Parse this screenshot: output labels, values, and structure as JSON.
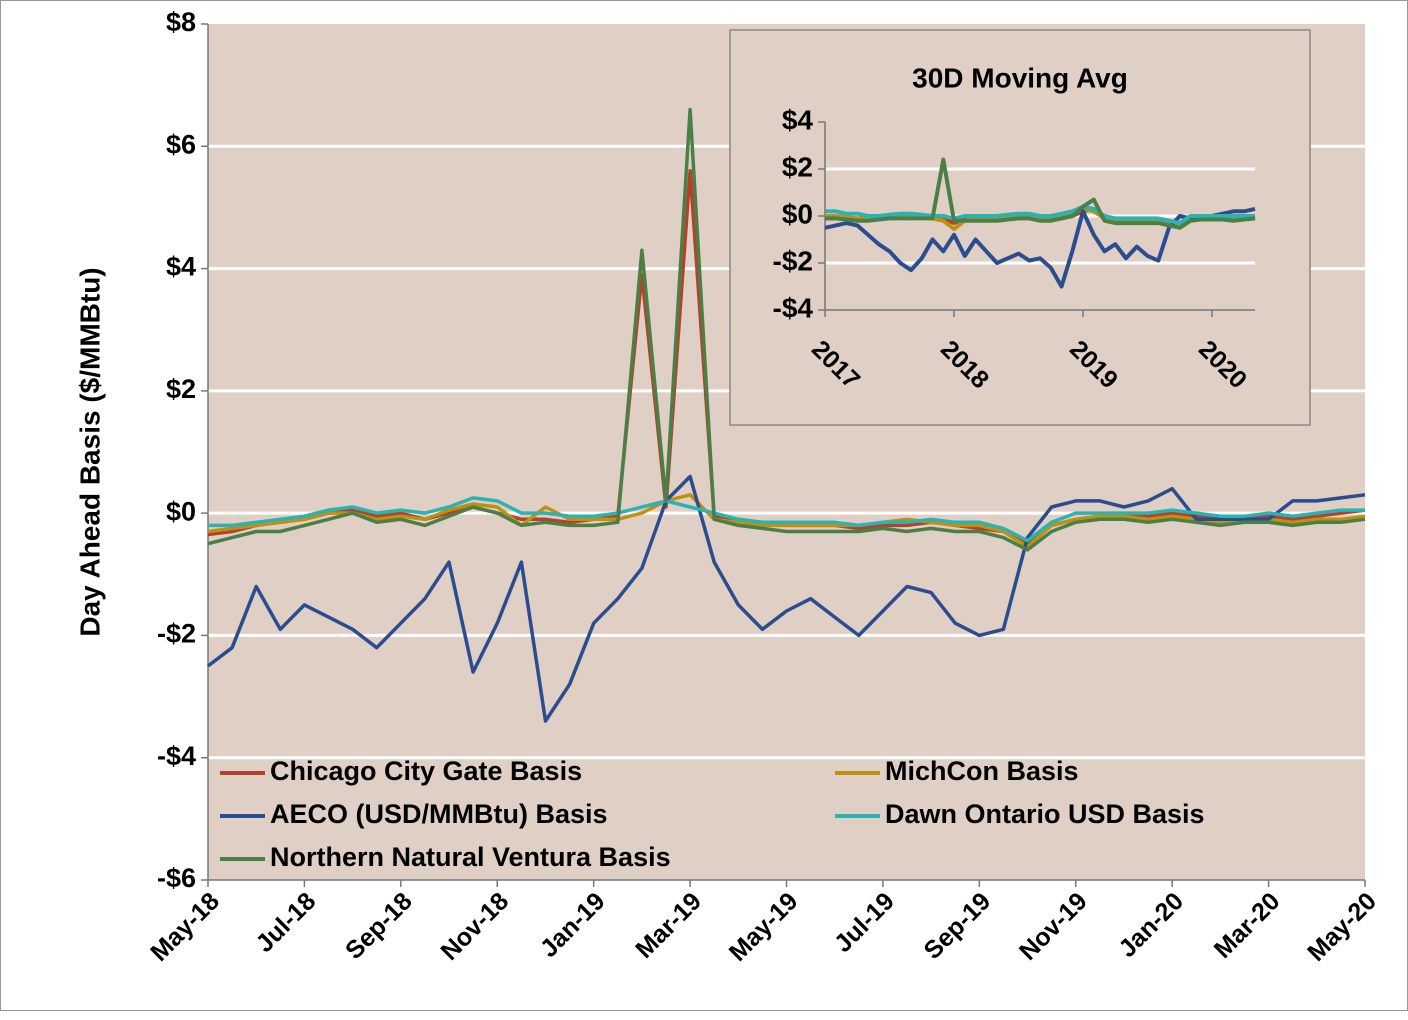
{
  "chart_data": [
    {
      "type": "line",
      "y_label": "Day Ahead Basis ($/MMBtu)",
      "categories": [
        "May-18",
        null,
        null,
        null,
        "Jul-18",
        null,
        null,
        null,
        "Sep-18",
        null,
        null,
        null,
        "Nov-18",
        null,
        null,
        null,
        "Jan-19",
        null,
        null,
        null,
        "Mar-19",
        null,
        null,
        null,
        "May-19",
        null,
        null,
        null,
        "Jul-19",
        null,
        null,
        null,
        "Sep-19",
        null,
        null,
        null,
        "Nov-19",
        null,
        null,
        null,
        "Jan-20",
        null,
        null,
        null,
        "Mar-20",
        null,
        null,
        null,
        "May-20"
      ],
      "ylim": [
        -6,
        8
      ],
      "yticks": [
        {
          "value": -6,
          "label": "-$6"
        },
        {
          "value": -4,
          "label": "-$4"
        },
        {
          "value": -2,
          "label": "-$2"
        },
        {
          "value": 0,
          "label": "$0"
        },
        {
          "value": 2,
          "label": "$2"
        },
        {
          "value": 4,
          "label": "$4"
        },
        {
          "value": 6,
          "label": "$6"
        },
        {
          "value": 8,
          "label": "$8"
        }
      ],
      "grid": true,
      "legend": "lower left",
      "background": "#dfcfc4",
      "series": [
        {
          "name": "Chicago City Gate Basis",
          "color": "#b5412a",
          "values": [
            -0.35,
            -0.3,
            -0.2,
            -0.15,
            -0.1,
            0.0,
            0.05,
            -0.05,
            0.0,
            -0.1,
            0.0,
            0.1,
            0.0,
            -0.1,
            -0.1,
            -0.15,
            -0.1,
            -0.05,
            3.9,
            0.1,
            5.6,
            -0.05,
            -0.1,
            -0.15,
            -0.2,
            -0.2,
            -0.2,
            -0.25,
            -0.2,
            -0.2,
            -0.15,
            -0.2,
            -0.25,
            -0.3,
            -0.5,
            -0.2,
            -0.1,
            -0.05,
            -0.05,
            -0.05,
            0.0,
            -0.05,
            -0.1,
            -0.1,
            -0.05,
            -0.1,
            -0.05,
            0.0,
            0.05
          ]
        },
        {
          "name": "MichCon Basis",
          "color": "#c0900f",
          "values": [
            -0.3,
            -0.25,
            -0.2,
            -0.15,
            -0.1,
            0.0,
            0.0,
            -0.1,
            -0.05,
            -0.1,
            0.05,
            0.15,
            0.1,
            -0.2,
            0.1,
            -0.1,
            -0.1,
            -0.1,
            0.0,
            0.2,
            0.3,
            -0.1,
            -0.15,
            -0.2,
            -0.2,
            -0.2,
            -0.2,
            -0.2,
            -0.15,
            -0.1,
            -0.15,
            -0.2,
            -0.2,
            -0.3,
            -0.55,
            -0.2,
            -0.1,
            -0.05,
            -0.05,
            -0.1,
            -0.05,
            -0.1,
            -0.15,
            -0.1,
            -0.1,
            -0.15,
            -0.1,
            -0.1,
            -0.05
          ]
        },
        {
          "name": "AECO (USD/MMBtu) Basis",
          "color": "#2a4d8f",
          "values": [
            -2.5,
            -2.2,
            -1.2,
            -1.9,
            -1.5,
            -1.7,
            -1.9,
            -2.2,
            -1.8,
            -1.4,
            -0.8,
            -2.6,
            -1.8,
            -0.8,
            -3.4,
            -2.8,
            -1.8,
            -1.4,
            -0.9,
            0.2,
            0.6,
            -0.8,
            -1.5,
            -1.9,
            -1.6,
            -1.4,
            -1.7,
            -2.0,
            -1.6,
            -1.2,
            -1.3,
            -1.8,
            -2.0,
            -1.9,
            -0.4,
            0.1,
            0.2,
            0.2,
            0.1,
            0.2,
            0.4,
            -0.1,
            -0.1,
            -0.1,
            -0.1,
            0.2,
            0.2,
            0.25,
            0.3
          ]
        },
        {
          "name": "Dawn Ontario USD Basis",
          "color": "#2ab3b3",
          "values": [
            -0.2,
            -0.2,
            -0.15,
            -0.1,
            -0.05,
            0.05,
            0.1,
            0.0,
            0.05,
            0.0,
            0.1,
            0.25,
            0.2,
            0.0,
            0.0,
            -0.05,
            -0.05,
            0.0,
            0.1,
            0.2,
            0.1,
            0.0,
            -0.1,
            -0.15,
            -0.15,
            -0.15,
            -0.15,
            -0.2,
            -0.15,
            -0.15,
            -0.1,
            -0.15,
            -0.15,
            -0.25,
            -0.45,
            -0.15,
            0.0,
            0.0,
            0.0,
            0.0,
            0.05,
            0.0,
            -0.05,
            -0.05,
            0.0,
            -0.05,
            0.0,
            0.05,
            0.05
          ]
        },
        {
          "name": "Northern Natural Ventura Basis",
          "color": "#4a8048",
          "values": [
            -0.5,
            -0.4,
            -0.3,
            -0.3,
            -0.2,
            -0.1,
            0.0,
            -0.15,
            -0.1,
            -0.2,
            -0.05,
            0.1,
            0.0,
            -0.2,
            -0.15,
            -0.2,
            -0.2,
            -0.15,
            4.3,
            0.2,
            6.6,
            -0.1,
            -0.2,
            -0.25,
            -0.3,
            -0.3,
            -0.3,
            -0.3,
            -0.25,
            -0.3,
            -0.25,
            -0.3,
            -0.3,
            -0.4,
            -0.6,
            -0.3,
            -0.15,
            -0.1,
            -0.1,
            -0.15,
            -0.1,
            -0.15,
            -0.2,
            -0.15,
            -0.15,
            -0.2,
            -0.15,
            -0.15,
            -0.1
          ]
        }
      ]
    },
    {
      "type": "line",
      "title": "30D Moving Avg",
      "categories": [
        "2017",
        null,
        null,
        null,
        null,
        null,
        null,
        null,
        null,
        null,
        null,
        null,
        "2018",
        null,
        null,
        null,
        null,
        null,
        null,
        null,
        null,
        null,
        null,
        null,
        "2019",
        null,
        null,
        null,
        null,
        null,
        null,
        null,
        null,
        null,
        null,
        null,
        "2020",
        null,
        null,
        null,
        null
      ],
      "ylim": [
        -4,
        4
      ],
      "yticks": [
        {
          "value": -4,
          "label": "-$4"
        },
        {
          "value": -2,
          "label": "-$2"
        },
        {
          "value": 0,
          "label": "$0"
        },
        {
          "value": 2,
          "label": "$2"
        },
        {
          "value": 4,
          "label": "$4"
        }
      ],
      "grid": true,
      "background": "#dfcfc4",
      "series": [
        {
          "color": "#b5412a",
          "values": [
            -0.1,
            -0.1,
            -0.1,
            -0.1,
            -0.1,
            -0.1,
            -0.05,
            0.0,
            0.0,
            -0.05,
            -0.1,
            -0.1,
            -0.3,
            -0.1,
            -0.1,
            -0.1,
            -0.1,
            -0.05,
            0.0,
            0.0,
            -0.1,
            -0.1,
            -0.1,
            0.0,
            0.2,
            0.3,
            -0.1,
            -0.2,
            -0.2,
            -0.2,
            -0.2,
            -0.2,
            -0.3,
            -0.4,
            -0.1,
            -0.05,
            -0.05,
            -0.05,
            -0.1,
            -0.05,
            0.0
          ]
        },
        {
          "color": "#c0900f",
          "values": [
            0.0,
            0.0,
            -0.05,
            -0.1,
            -0.1,
            -0.1,
            -0.05,
            0.0,
            0.0,
            -0.05,
            -0.1,
            -0.2,
            -0.55,
            -0.2,
            -0.1,
            -0.1,
            -0.1,
            -0.05,
            0.0,
            0.0,
            -0.1,
            -0.1,
            0.0,
            0.1,
            0.3,
            0.2,
            -0.1,
            -0.2,
            -0.2,
            -0.2,
            -0.2,
            -0.2,
            -0.3,
            -0.4,
            -0.1,
            -0.1,
            -0.1,
            -0.1,
            -0.1,
            -0.1,
            -0.05
          ]
        },
        {
          "color": "#2a4d8f",
          "values": [
            -0.5,
            -0.4,
            -0.3,
            -0.4,
            -0.8,
            -1.2,
            -1.5,
            -2.0,
            -2.3,
            -1.8,
            -1.0,
            -1.5,
            -0.8,
            -1.7,
            -1.0,
            -1.5,
            -2.0,
            -1.8,
            -1.6,
            -1.9,
            -1.8,
            -2.2,
            -3.0,
            -1.5,
            0.2,
            -0.8,
            -1.5,
            -1.2,
            -1.8,
            -1.3,
            -1.7,
            -1.9,
            -0.5,
            0.0,
            -0.1,
            0.0,
            0.0,
            0.1,
            0.2,
            0.2,
            0.3
          ]
        },
        {
          "color": "#2ab3b3",
          "values": [
            0.2,
            0.2,
            0.1,
            0.1,
            0.0,
            0.0,
            0.05,
            0.1,
            0.1,
            0.05,
            0.0,
            0.0,
            -0.1,
            0.0,
            0.0,
            0.0,
            0.0,
            0.05,
            0.1,
            0.1,
            0.0,
            0.0,
            0.1,
            0.2,
            0.4,
            0.3,
            0.0,
            -0.1,
            -0.1,
            -0.1,
            -0.1,
            -0.1,
            -0.2,
            -0.3,
            0.0,
            0.0,
            0.0,
            0.0,
            0.0,
            0.0,
            0.0
          ]
        },
        {
          "color": "#4a8048",
          "values": [
            -0.1,
            -0.1,
            -0.15,
            -0.2,
            -0.2,
            -0.15,
            -0.1,
            -0.1,
            -0.1,
            -0.1,
            -0.1,
            2.4,
            -0.2,
            -0.2,
            -0.2,
            -0.2,
            -0.2,
            -0.15,
            -0.1,
            -0.1,
            -0.2,
            -0.2,
            -0.1,
            0.0,
            0.4,
            0.7,
            -0.2,
            -0.3,
            -0.3,
            -0.3,
            -0.3,
            -0.3,
            -0.4,
            -0.5,
            -0.2,
            -0.15,
            -0.15,
            -0.15,
            -0.2,
            -0.15,
            -0.1
          ]
        }
      ]
    }
  ]
}
